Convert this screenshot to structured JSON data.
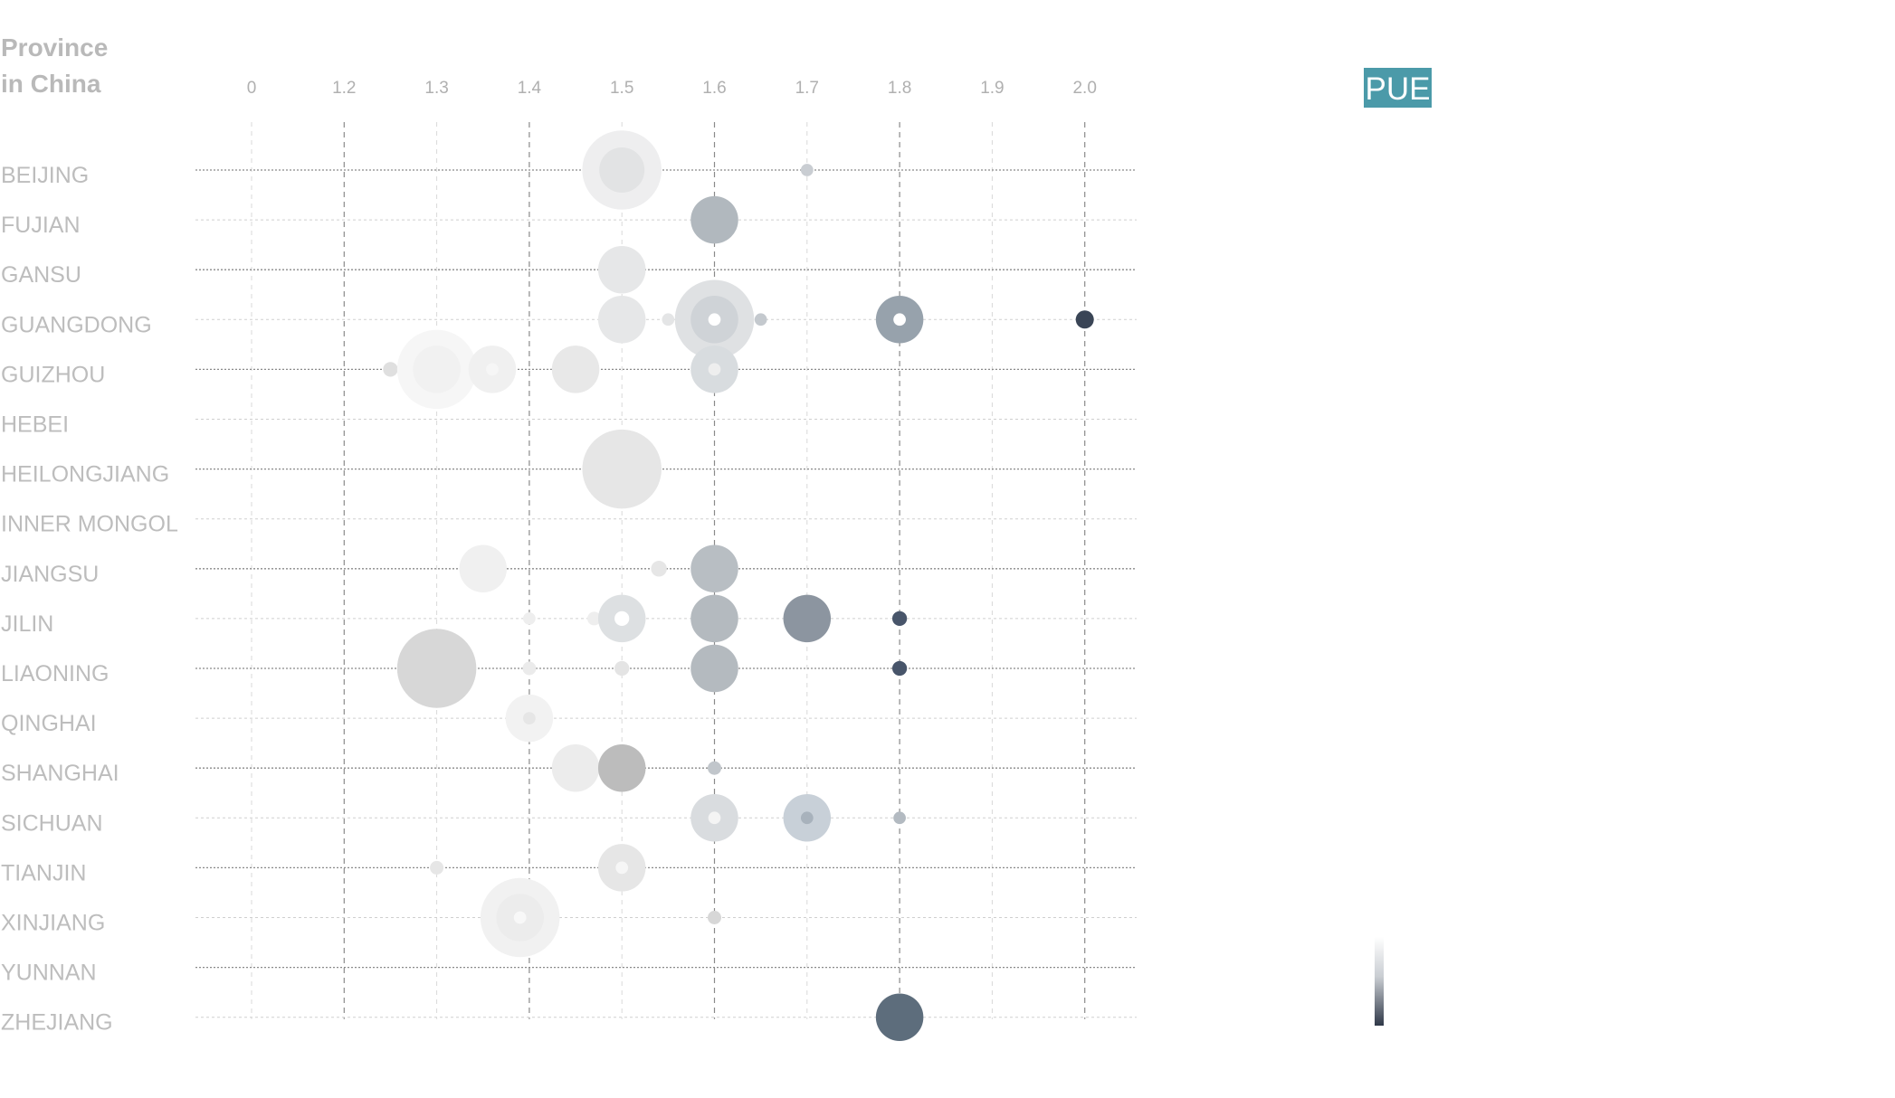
{
  "chart_data": {
    "type": "scatter",
    "title_lines": [
      "Province",
      "in China"
    ],
    "legend_label": "PUE",
    "colors": {
      "badge": "#4b9aa9",
      "grid": "#8a8a8a"
    },
    "x_ticks": [
      "0",
      "1.2",
      "1.3",
      "1.4",
      "1.5",
      "1.6",
      "1.7",
      "1.8",
      "1.9",
      "2.0"
    ],
    "categories": [
      "BEIJING",
      "FUJIAN",
      "GANSU",
      "GUANGDONG",
      "GUIZHOU",
      "HEBEI",
      "HEILONGJIANG",
      "INNER MONGOL",
      "JIANGSU",
      "JILIN",
      "LIAONING",
      "QINGHAI",
      "SHANGHAI",
      "SICHUAN",
      "TIANJIN",
      "XINJIANG",
      "YUNNAN",
      "ZHEJIANG"
    ],
    "points": [
      {
        "province": "BEIJING",
        "pue": 1.5,
        "size": 3.5,
        "color": "#eeeeef"
      },
      {
        "province": "BEIJING",
        "pue": 1.5,
        "size": 2.0,
        "color": "#e2e3e4"
      },
      {
        "province": "BEIJING",
        "pue": 1.7,
        "size": 0.55,
        "color": "#c9cdd2"
      },
      {
        "province": "FUJIAN",
        "pue": 1.6,
        "size": 2.1,
        "color": "#b1b8be"
      },
      {
        "province": "GANSU",
        "pue": 1.5,
        "size": 2.1,
        "color": "#e6e7e8"
      },
      {
        "province": "GUANGDONG",
        "pue": 1.5,
        "size": 2.1,
        "color": "#e6e7e8"
      },
      {
        "province": "GUANGDONG",
        "pue": 1.55,
        "size": 0.55,
        "color": "#e4e5e6"
      },
      {
        "province": "GUANGDONG",
        "pue": 1.6,
        "size": 3.5,
        "color": "#dfe1e3"
      },
      {
        "province": "GUANGDONG",
        "pue": 1.6,
        "size": 2.1,
        "color": "#cfd3d7"
      },
      {
        "province": "GUANGDONG",
        "pue": 1.6,
        "size": 0.55,
        "color": "#ffffff"
      },
      {
        "province": "GUANGDONG",
        "pue": 1.65,
        "size": 0.55,
        "color": "#c4c9ce"
      },
      {
        "province": "GUANGDONG",
        "pue": 1.8,
        "size": 2.1,
        "color": "#97a2ac"
      },
      {
        "province": "GUANGDONG",
        "pue": 1.8,
        "size": 0.55,
        "color": "#ffffff"
      },
      {
        "province": "GUANGDONG",
        "pue": 2.0,
        "size": 0.8,
        "color": "#3a4556"
      },
      {
        "province": "GUIZHOU",
        "pue": 1.25,
        "size": 0.65,
        "color": "#dfdfdf"
      },
      {
        "province": "GUIZHOU",
        "pue": 1.3,
        "size": 3.5,
        "color": "#f6f6f6"
      },
      {
        "province": "GUIZHOU",
        "pue": 1.3,
        "size": 2.1,
        "color": "#f1f1f1"
      },
      {
        "province": "GUIZHOU",
        "pue": 1.36,
        "size": 2.1,
        "color": "#f0f0f0"
      },
      {
        "province": "GUIZHOU",
        "pue": 1.36,
        "size": 0.55,
        "color": "#f6f6f6"
      },
      {
        "province": "GUIZHOU",
        "pue": 1.45,
        "size": 2.1,
        "color": "#e8e8e8"
      },
      {
        "province": "GUIZHOU",
        "pue": 1.6,
        "size": 2.1,
        "color": "#d8dcdf"
      },
      {
        "province": "GUIZHOU",
        "pue": 1.6,
        "size": 0.55,
        "color": "#eeeeee"
      },
      {
        "province": "HEILONGJIANG",
        "pue": 1.5,
        "size": 3.5,
        "color": "#e6e6e6"
      },
      {
        "province": "JIANGSU",
        "pue": 1.35,
        "size": 2.1,
        "color": "#f0f0f0"
      },
      {
        "province": "JIANGSU",
        "pue": 1.54,
        "size": 0.7,
        "color": "#e6e6e6"
      },
      {
        "province": "JIANGSU",
        "pue": 1.6,
        "size": 2.1,
        "color": "#b8bec3"
      },
      {
        "province": "JILIN",
        "pue": 1.4,
        "size": 0.55,
        "color": "#eeeeee"
      },
      {
        "province": "JILIN",
        "pue": 1.47,
        "size": 0.6,
        "color": "#eeeeee"
      },
      {
        "province": "JILIN",
        "pue": 1.5,
        "size": 2.1,
        "color": "#dde0e2"
      },
      {
        "province": "JILIN",
        "pue": 1.5,
        "size": 0.65,
        "color": "#ffffff"
      },
      {
        "province": "JILIN",
        "pue": 1.6,
        "size": 2.1,
        "color": "#b4babf"
      },
      {
        "province": "JILIN",
        "pue": 1.7,
        "size": 2.1,
        "color": "#8c95a0"
      },
      {
        "province": "JILIN",
        "pue": 1.8,
        "size": 0.65,
        "color": "#48556a"
      },
      {
        "province": "LIAONING",
        "pue": 1.3,
        "size": 3.5,
        "color": "#d7d7d7"
      },
      {
        "province": "LIAONING",
        "pue": 1.4,
        "size": 0.6,
        "color": "#ebebeb"
      },
      {
        "province": "LIAONING",
        "pue": 1.5,
        "size": 0.65,
        "color": "#e4e4e4"
      },
      {
        "province": "LIAONING",
        "pue": 1.6,
        "size": 2.1,
        "color": "#b4babf"
      },
      {
        "province": "LIAONING",
        "pue": 1.8,
        "size": 0.65,
        "color": "#48556a"
      },
      {
        "province": "QINGHAI",
        "pue": 1.4,
        "size": 2.1,
        "color": "#f2f2f2"
      },
      {
        "province": "QINGHAI",
        "pue": 1.4,
        "size": 0.55,
        "color": "#e6e6e6"
      },
      {
        "province": "SHANGHAI",
        "pue": 1.45,
        "size": 2.1,
        "color": "#ececec"
      },
      {
        "province": "SHANGHAI",
        "pue": 1.5,
        "size": 2.1,
        "color": "#bcbcbc"
      },
      {
        "province": "SHANGHAI",
        "pue": 1.6,
        "size": 0.6,
        "color": "#c1c6cb"
      },
      {
        "province": "SICHUAN",
        "pue": 1.6,
        "size": 2.1,
        "color": "#d9dcdf"
      },
      {
        "province": "SICHUAN",
        "pue": 1.6,
        "size": 0.55,
        "color": "#f4f4f4"
      },
      {
        "province": "SICHUAN",
        "pue": 1.7,
        "size": 2.1,
        "color": "#c8d0d8"
      },
      {
        "province": "SICHUAN",
        "pue": 1.7,
        "size": 0.55,
        "color": "#a8b2bc"
      },
      {
        "province": "SICHUAN",
        "pue": 1.8,
        "size": 0.55,
        "color": "#b3bac1"
      },
      {
        "province": "TIANJIN",
        "pue": 1.3,
        "size": 0.6,
        "color": "#e6e6e6"
      },
      {
        "province": "TIANJIN",
        "pue": 1.5,
        "size": 2.1,
        "color": "#e6e6e6"
      },
      {
        "province": "TIANJIN",
        "pue": 1.5,
        "size": 0.55,
        "color": "#f6f6f6"
      },
      {
        "province": "XINJIANG",
        "pue": 1.39,
        "size": 3.5,
        "color": "#f1f1f1"
      },
      {
        "province": "XINJIANG",
        "pue": 1.39,
        "size": 2.1,
        "color": "#ececec"
      },
      {
        "province": "XINJIANG",
        "pue": 1.39,
        "size": 0.55,
        "color": "#f8f8f8"
      },
      {
        "province": "XINJIANG",
        "pue": 1.6,
        "size": 0.6,
        "color": "#d7d7d7"
      },
      {
        "province": "ZHEJIANG",
        "pue": 1.8,
        "size": 2.1,
        "color": "#5d6d7c"
      }
    ]
  }
}
